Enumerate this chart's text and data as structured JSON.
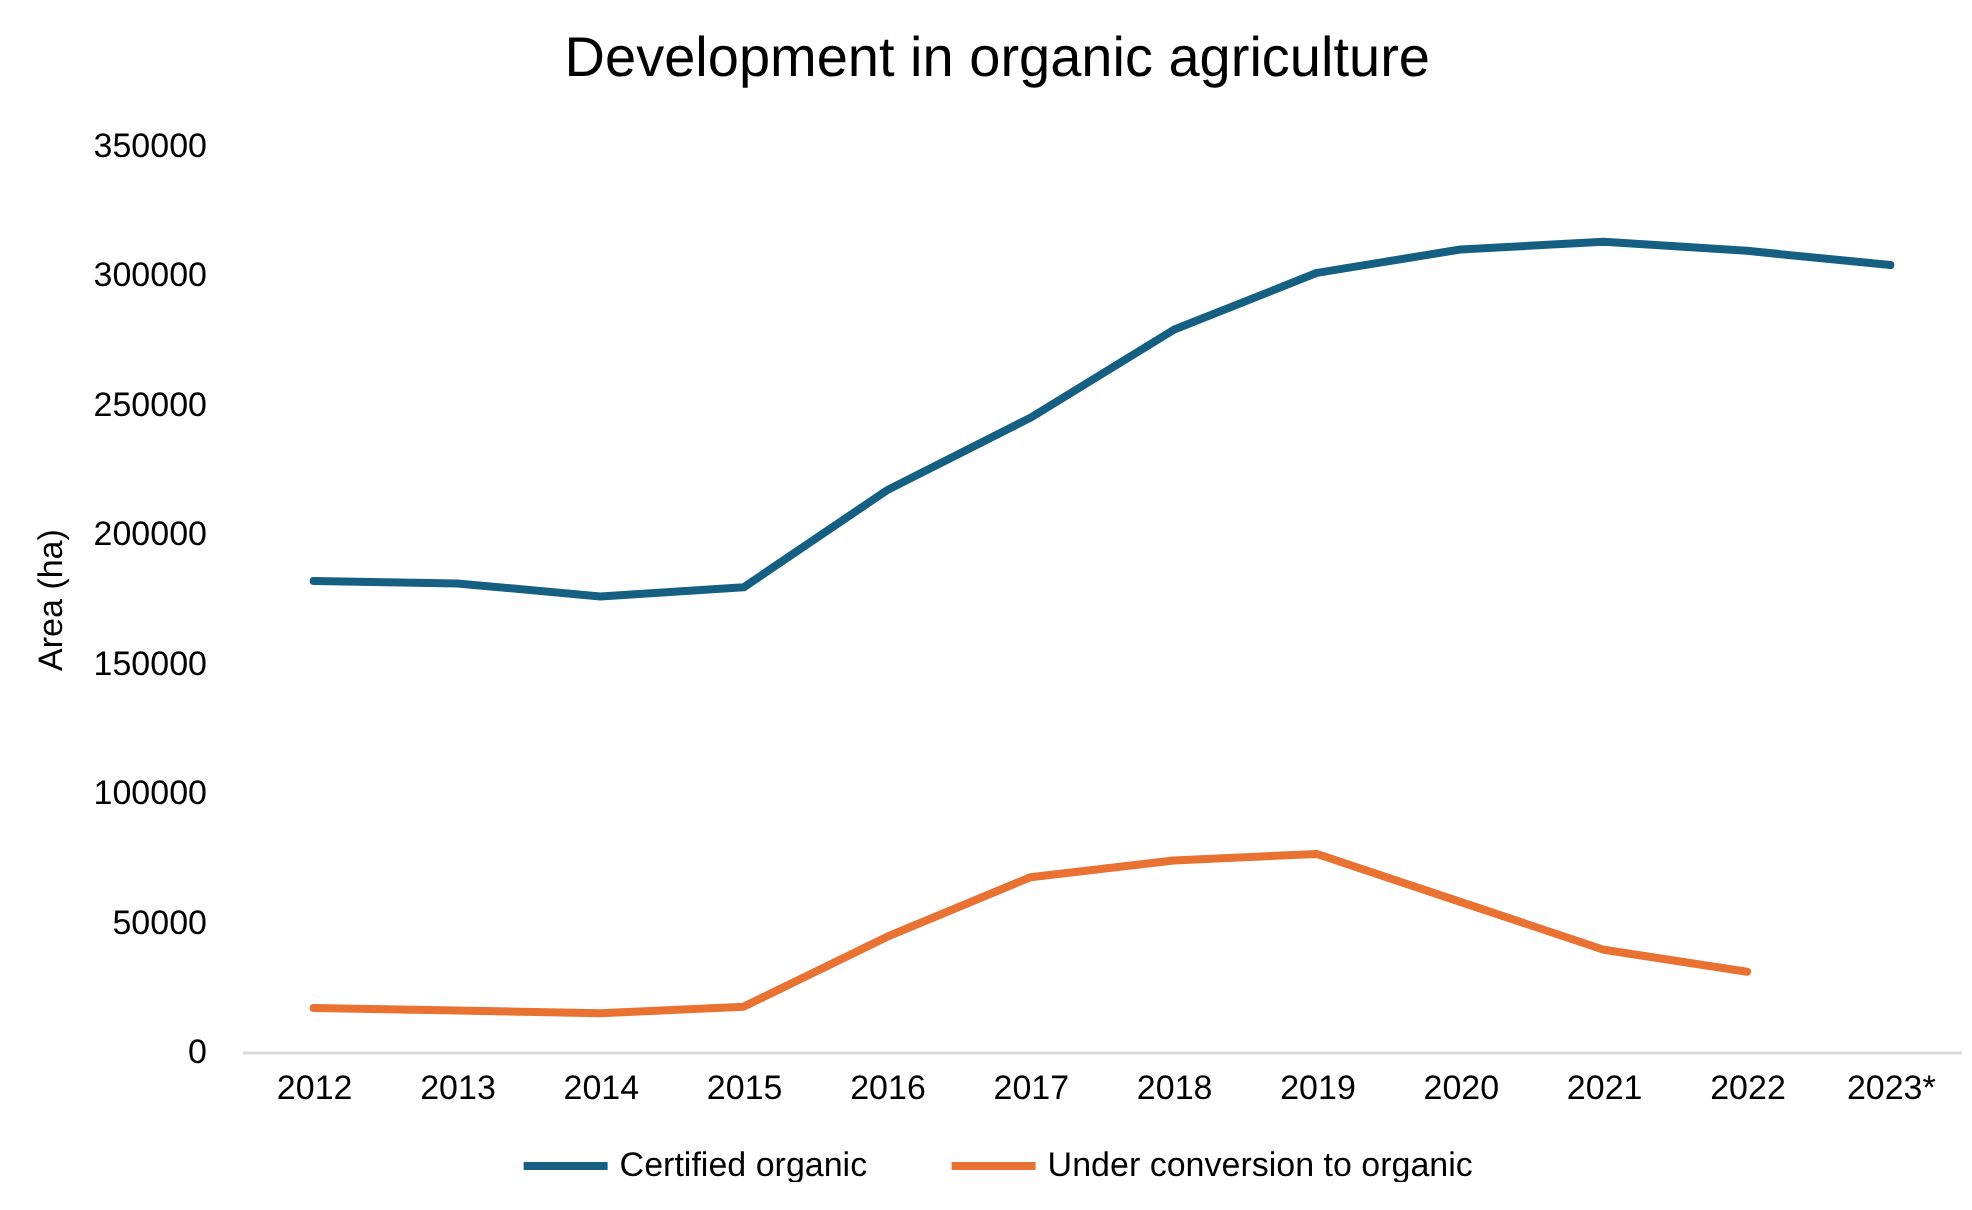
{
  "chart_data": {
    "type": "line",
    "title": "Development in organic agriculture",
    "ylabel": "Area (ha)",
    "categories": [
      "2012",
      "2013",
      "2014",
      "2015",
      "2016",
      "2017",
      "2018",
      "2019",
      "2020",
      "2021",
      "2022",
      "2023*"
    ],
    "series": [
      {
        "name": "Certified organic",
        "color": "#156082",
        "values": [
          182000,
          181000,
          176000,
          179500,
          217000,
          245000,
          279000,
          301000,
          310000,
          313000,
          309500,
          304000
        ]
      },
      {
        "name": "Under conversion to organic",
        "color": "#e97132",
        "values": [
          17000,
          16000,
          15000,
          17500,
          44500,
          67500,
          74000,
          76500,
          58000,
          39500,
          31000,
          null
        ]
      }
    ],
    "ylim": [
      0,
      350000
    ],
    "yticks": [
      0,
      50000,
      100000,
      150000,
      200000,
      250000,
      300000,
      350000
    ],
    "grid": false,
    "legend": "bottom",
    "marker": "none",
    "line_style": "solid"
  }
}
